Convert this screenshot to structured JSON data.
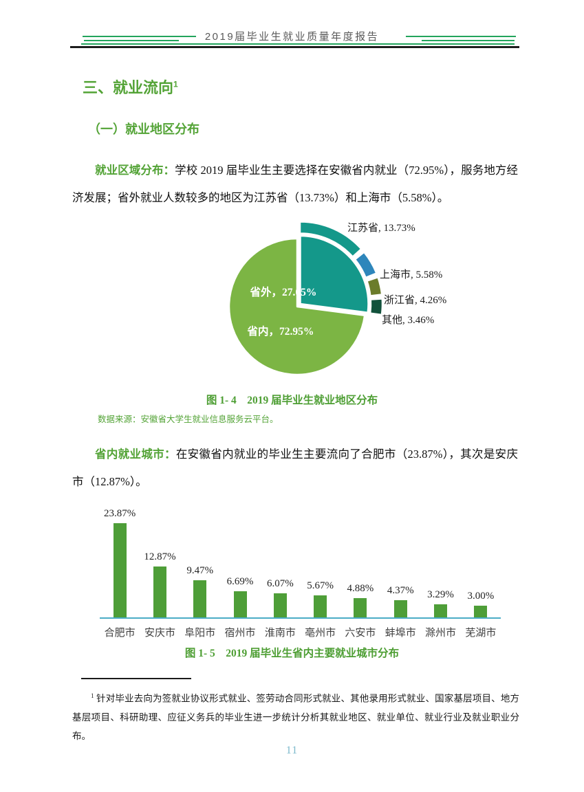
{
  "header": {
    "title": "2019届毕业生就业质量年度报告"
  },
  "section": {
    "title": "三、就业流向",
    "footnote_ref": "1"
  },
  "subsection": {
    "title": "（一）就业地区分布"
  },
  "paragraphs": [
    {
      "lead": "就业区域分布：",
      "text": "学校 2019 届毕业生主要选择在安徽省内就业（72.95%），服务地方经济发展；省外就业人数较多的地区为江苏省（13.73%）和上海市（5.58%）。"
    },
    {
      "lead": "省内就业城市：",
      "text": "在安徽省内就业的毕业生主要流向了合肥市（23.87%），其次是安庆市（12.87%）。"
    }
  ],
  "figure1": {
    "caption": "图 1- 4　2019 届毕业生就业地区分布",
    "source": "数据来源：安徽省大学生就业信息服务云平台。"
  },
  "figure2": {
    "caption": "图 1- 5　2019 届毕业生省内主要就业城市分布"
  },
  "chart_data": [
    {
      "type": "pie",
      "title": "图 1-4 2019届毕业生就业地区分布",
      "legend_position": "none",
      "slices": [
        {
          "label": "省内",
          "value": 72.95,
          "color": "#7cb544",
          "text": "省内，72.95%"
        },
        {
          "label": "省外",
          "value": 27.05,
          "color": "#14988a",
          "text": "省外，27.05%"
        }
      ],
      "breakout_of": "省外",
      "breakout": [
        {
          "label": "江苏省",
          "value": 13.73,
          "color": "#14988a",
          "text": "江苏省, 13.73%"
        },
        {
          "label": "上海市",
          "value": 5.58,
          "color": "#2e86bb",
          "text": "上海市, 5.58%"
        },
        {
          "label": "浙江省",
          "value": 4.26,
          "color": "#6b7c2b",
          "text": "浙江省, 4.26%"
        },
        {
          "label": "其他",
          "value": 3.46,
          "color": "#12523c",
          "text": "其他, 3.46%"
        }
      ]
    },
    {
      "type": "bar",
      "title": "图 1-5 2019届毕业生省内主要就业城市分布",
      "categories": [
        "合肥市",
        "安庆市",
        "阜阳市",
        "宿州市",
        "淮南市",
        "亳州市",
        "六安市",
        "蚌埠市",
        "滁州市",
        "芜湖市"
      ],
      "values": [
        23.87,
        12.87,
        9.47,
        6.69,
        6.07,
        5.67,
        4.88,
        4.37,
        3.29,
        3.0
      ],
      "labels": [
        "23.87%",
        "12.87%",
        "9.47%",
        "6.69%",
        "6.07%",
        "5.67%",
        "4.88%",
        "4.37%",
        "3.29%",
        "3.00%"
      ],
      "bar_color": "#4e9e38",
      "axis_color": "#4bacc6",
      "ylim": [
        0,
        25
      ],
      "grid": false
    }
  ],
  "footnote": {
    "marker": "1",
    "text": " 针对毕业去向为签就业协议形式就业、签劳动合同形式就业、其他录用形式就业、国家基层项目、地方基层项目、科研助理、应征义务兵的毕业生进一步统计分析其就业地区、就业单位、就业行业及就业职业分布。"
  },
  "page_number": "11"
}
